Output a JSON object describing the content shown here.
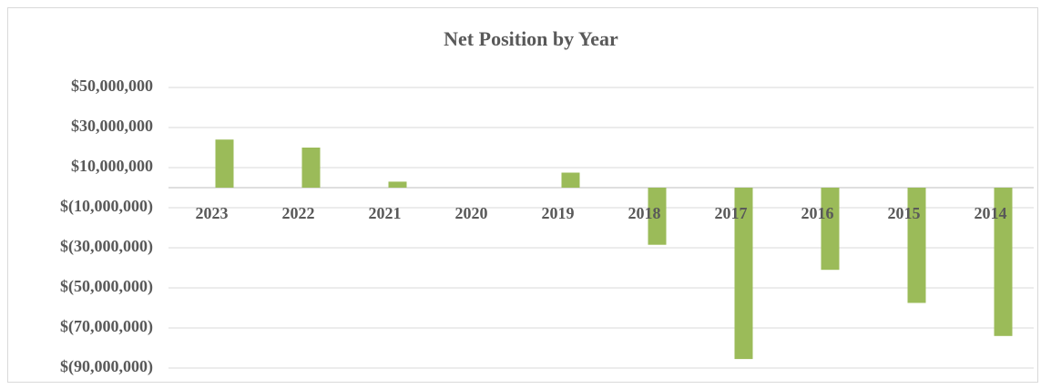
{
  "chart_data": {
    "type": "bar",
    "title": "Net Position by Year",
    "categories": [
      "2023",
      "2022",
      "2021",
      "2020",
      "2019",
      "2018",
      "2017",
      "2016",
      "2015",
      "2014"
    ],
    "values": [
      24000000,
      20000000,
      3000000,
      0,
      7500000,
      -28500000,
      -85500000,
      -41000000,
      -57500000,
      -74000000
    ],
    "color": "#9bbb59",
    "ylim": [
      -90000000,
      50000000
    ],
    "yticks": [
      {
        "value": -90000000,
        "label": "$(90,000,000)"
      },
      {
        "value": -70000000,
        "label": "$(70,000,000)"
      },
      {
        "value": -50000000,
        "label": "$(50,000,000)"
      },
      {
        "value": -30000000,
        "label": "$(30,000,000)"
      },
      {
        "value": -10000000,
        "label": "$(10,000,000)"
      },
      {
        "value": 10000000,
        "label": "$10,000,000"
      },
      {
        "value": 30000000,
        "label": "$30,000,000"
      },
      {
        "value": 50000000,
        "label": "$50,000,000"
      }
    ],
    "grid": true
  }
}
